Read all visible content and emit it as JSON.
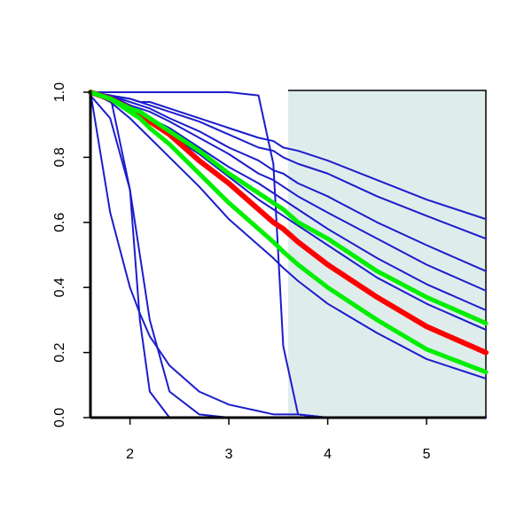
{
  "chart_data": {
    "type": "line",
    "x": [
      1.6,
      1.8,
      2.0,
      2.1,
      2.2,
      2.4,
      2.7,
      3.0,
      3.3,
      3.45,
      3.55,
      3.7,
      4.0,
      4.5,
      5.0,
      5.6
    ],
    "xlim": [
      1.6,
      5.6
    ],
    "ylim": [
      0,
      1
    ],
    "xticks": [
      2,
      3,
      4,
      5
    ],
    "yticks": [
      {
        "value": 0,
        "label": "0.0"
      },
      {
        "value": 0.2,
        "label": "0.2"
      },
      {
        "value": 0.4,
        "label": "0.4"
      },
      {
        "value": 0.6,
        "label": "0.6"
      },
      {
        "value": 0.8,
        "label": "0.8"
      },
      {
        "value": 1,
        "label": "1.0"
      }
    ],
    "grid": false,
    "shade_x": [
      3.6,
      5.6
    ],
    "shade_color": "#dfecec",
    "series": [
      {
        "color": "#1c1ccc",
        "width": 2,
        "values": [
          1,
          0.99,
          0.98,
          0.97,
          0.97,
          0.95,
          0.92,
          0.89,
          0.86,
          0.85,
          0.83,
          0.82,
          0.79,
          0.73,
          0.67,
          0.61
        ]
      },
      {
        "color": "#1c1ccc",
        "width": 2,
        "values": [
          1,
          0.99,
          0.98,
          0.97,
          0.96,
          0.94,
          0.91,
          0.87,
          0.83,
          0.82,
          0.8,
          0.78,
          0.75,
          0.68,
          0.62,
          0.55
        ]
      },
      {
        "color": "#1c1ccc",
        "width": 2,
        "values": [
          1,
          0.99,
          0.97,
          0.96,
          0.95,
          0.92,
          0.88,
          0.83,
          0.79,
          0.76,
          0.75,
          0.72,
          0.68,
          0.6,
          0.53,
          0.45
        ]
      },
      {
        "color": "#1c1ccc",
        "width": 2,
        "values": [
          1,
          0.99,
          0.96,
          0.95,
          0.94,
          0.91,
          0.86,
          0.81,
          0.75,
          0.73,
          0.71,
          0.68,
          0.63,
          0.55,
          0.47,
          0.39
        ]
      },
      {
        "color": "#1c1ccc",
        "width": 2,
        "values": [
          1,
          0.98,
          0.96,
          0.94,
          0.92,
          0.89,
          0.83,
          0.77,
          0.72,
          0.69,
          0.67,
          0.64,
          0.58,
          0.49,
          0.41,
          0.33
        ]
      },
      {
        "color": "#1c1ccc",
        "width": 2,
        "values": [
          1,
          0.98,
          0.95,
          0.93,
          0.91,
          0.87,
          0.81,
          0.74,
          0.67,
          0.64,
          0.62,
          0.59,
          0.53,
          0.43,
          0.35,
          0.27
        ]
      },
      {
        "color": "#1c1ccc",
        "width": 2,
        "values": [
          1,
          0.97,
          0.92,
          0.89,
          0.86,
          0.8,
          0.71,
          0.61,
          0.53,
          0.49,
          0.46,
          0.42,
          0.35,
          0.26,
          0.18,
          0.12
        ]
      },
      {
        "color": "#1c1ccc",
        "width": 2,
        "values": [
          1,
          0.63,
          0.4,
          0.32,
          0.25,
          0.16,
          0.08,
          0.04,
          0.02,
          0.01,
          0.01,
          0.01,
          0,
          0,
          0,
          0
        ]
      },
      {
        "color": "#1c1ccc",
        "width": 2,
        "values": [
          1,
          0.99,
          0.7,
          0.3,
          0.08,
          0,
          0,
          0,
          0,
          0,
          0,
          0,
          0,
          0,
          0,
          0
        ]
      },
      {
        "color": "#1c1ccc",
        "width": 2,
        "values": [
          0.99,
          0.92,
          0.7,
          0.5,
          0.3,
          0.08,
          0.01,
          0,
          0,
          0,
          0,
          0,
          0,
          0,
          0,
          0
        ]
      },
      {
        "color": "#1c1ccc",
        "width": 2,
        "values": [
          1,
          1,
          1,
          1,
          1,
          1,
          1,
          1,
          0.99,
          0.78,
          0.22,
          0.01,
          0,
          0,
          0,
          0
        ]
      },
      {
        "color": "#ff0000",
        "width": 6,
        "values": [
          1,
          0.98,
          0.95,
          0.93,
          0.91,
          0.87,
          0.79,
          0.72,
          0.64,
          0.6,
          0.58,
          0.54,
          0.47,
          0.37,
          0.28,
          0.2
        ]
      },
      {
        "color": "#00ee00",
        "width": 5,
        "values": [
          1,
          0.98,
          0.94,
          0.92,
          0.89,
          0.84,
          0.75,
          0.66,
          0.58,
          0.54,
          0.51,
          0.47,
          0.4,
          0.3,
          0.21,
          0.14
        ]
      },
      {
        "color": "#00ee00",
        "width": 5,
        "values": [
          1,
          0.98,
          0.95,
          0.94,
          0.92,
          0.88,
          0.82,
          0.75,
          0.69,
          0.66,
          0.64,
          0.6,
          0.55,
          0.45,
          0.37,
          0.29
        ]
      }
    ]
  }
}
